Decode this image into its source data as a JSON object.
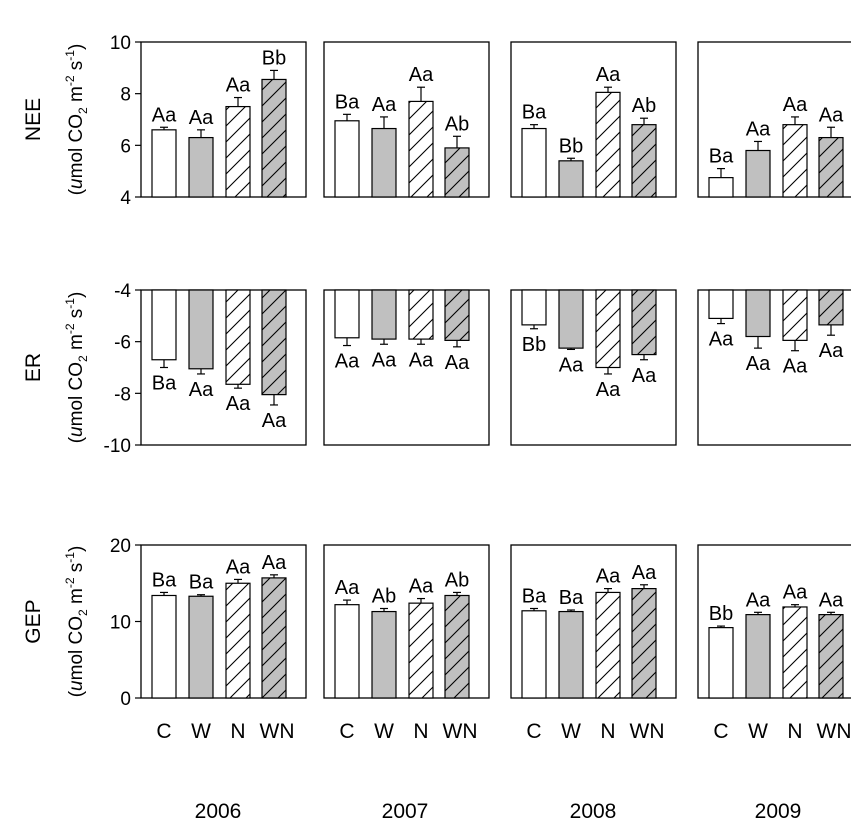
{
  "chart_data": {
    "type": "bar",
    "categories": [
      "C",
      "W",
      "N",
      "WN"
    ],
    "category_axis_label": "C W NWN",
    "years": [
      "2006",
      "2007",
      "2008",
      "2009"
    ],
    "legend": "none",
    "grid": false,
    "fills": {
      "C": "#ffffff",
      "W": "#c0c0c0",
      "N": "hatched-white",
      "WN": "hatched-gray"
    },
    "rows": [
      {
        "key": "NEE",
        "label": "NEE",
        "unit_prefix": "(",
        "unit_italic": "u",
        "unit_text": "mol CO",
        "unit_sub": "2",
        "unit_mid": " m",
        "unit_sup1": "-2",
        "unit_s": " s",
        "unit_sup2": "-1",
        "unit_suffix": ")",
        "ylim": [
          4,
          10
        ],
        "ticks": [
          "4",
          "6",
          "8",
          "10"
        ],
        "panels": [
          {
            "values": [
              6.6,
              6.3,
              7.5,
              8.55
            ],
            "errors": [
              0.1,
              0.3,
              0.35,
              0.35
            ],
            "letters": [
              "Aa",
              "Aa",
              "Aa",
              "Bb"
            ]
          },
          {
            "values": [
              6.95,
              6.65,
              7.7,
              5.9
            ],
            "errors": [
              0.25,
              0.45,
              0.55,
              0.45
            ],
            "letters": [
              "Ba",
              "Aa",
              "Aa",
              "Ab"
            ]
          },
          {
            "values": [
              6.65,
              5.4,
              8.05,
              6.8
            ],
            "errors": [
              0.15,
              0.1,
              0.2,
              0.25
            ],
            "letters": [
              "Ba",
              "Bb",
              "Aa",
              "Ab"
            ]
          },
          {
            "values": [
              4.75,
              5.8,
              6.8,
              6.3
            ],
            "errors": [
              0.35,
              0.35,
              0.3,
              0.4
            ],
            "letters": [
              "Ba",
              "Aa",
              "Aa",
              "Aa"
            ]
          }
        ]
      },
      {
        "key": "ER",
        "label": "ER",
        "unit_prefix": "(",
        "unit_italic": "u",
        "unit_text": "mol CO",
        "unit_sub": "2",
        "unit_mid": " m",
        "unit_sup1": "-2",
        "unit_s": " s",
        "unit_sup2": "-1",
        "unit_suffix": ")",
        "ylim": [
          -10,
          -4
        ],
        "ticks": [
          "-10",
          "-8",
          "-6",
          "-4"
        ],
        "panels": [
          {
            "values": [
              -6.7,
              -7.05,
              -7.65,
              -8.05
            ],
            "errors": [
              0.3,
              0.2,
              0.15,
              0.4
            ],
            "letters": [
              "Ba",
              "Aa",
              "Aa",
              "Aa"
            ]
          },
          {
            "values": [
              -5.85,
              -5.9,
              -5.9,
              -5.95
            ],
            "errors": [
              0.3,
              0.2,
              0.2,
              0.25
            ],
            "letters": [
              "Aa",
              "Aa",
              "Aa",
              "Aa"
            ]
          },
          {
            "values": [
              -5.35,
              -6.25,
              -7.0,
              -6.5
            ],
            "errors": [
              0.15,
              0.05,
              0.25,
              0.2
            ],
            "letters": [
              "Bb",
              "Aa",
              "Aa",
              "Aa"
            ]
          },
          {
            "values": [
              -5.1,
              -5.8,
              -5.95,
              -5.35
            ],
            "errors": [
              0.2,
              0.45,
              0.4,
              0.4
            ],
            "letters": [
              "Aa",
              "Aa",
              "Aa",
              "Aa"
            ]
          }
        ]
      },
      {
        "key": "GEP",
        "label": "GEP",
        "unit_prefix": "(",
        "unit_italic": "u",
        "unit_text": "mol CO",
        "unit_sub": "2",
        "unit_mid": " m",
        "unit_sup1": "-2",
        "unit_s": " s",
        "unit_sup2": "-1",
        "unit_suffix": ")",
        "ylim": [
          0,
          20
        ],
        "ticks": [
          "0",
          "10",
          "20"
        ],
        "panels": [
          {
            "values": [
              13.4,
              13.3,
              15.0,
              15.7
            ],
            "errors": [
              0.4,
              0.2,
              0.5,
              0.4
            ],
            "letters": [
              "Ba",
              "Ba",
              "Aa",
              "Aa"
            ]
          },
          {
            "values": [
              12.2,
              11.3,
              12.4,
              13.4
            ],
            "errors": [
              0.6,
              0.4,
              0.6,
              0.4
            ],
            "letters": [
              "Aa",
              "Ab",
              "Aa",
              "Ab"
            ]
          },
          {
            "values": [
              11.4,
              11.3,
              13.8,
              14.3
            ],
            "errors": [
              0.3,
              0.2,
              0.5,
              0.5
            ],
            "letters": [
              "Ba",
              "Ba",
              "Aa",
              "Aa"
            ]
          },
          {
            "values": [
              9.2,
              10.9,
              11.9,
              10.9
            ],
            "errors": [
              0.2,
              0.3,
              0.3,
              0.3
            ],
            "letters": [
              "Bb",
              "Aa",
              "Aa",
              "Aa"
            ]
          }
        ]
      }
    ]
  }
}
